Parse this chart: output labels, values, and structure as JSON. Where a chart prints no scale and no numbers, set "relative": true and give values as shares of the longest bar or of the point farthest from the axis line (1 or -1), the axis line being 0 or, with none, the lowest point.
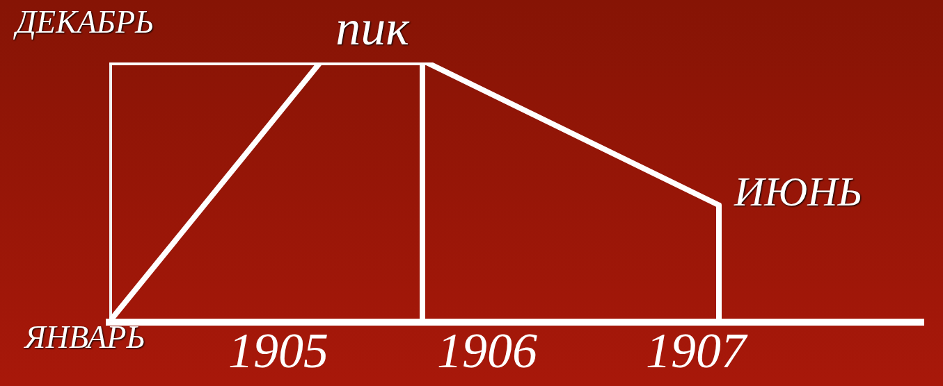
{
  "chart_data": {
    "type": "line",
    "relative": true,
    "xlim": [
      1904.19,
      1908.09
    ],
    "xticks": [
      1905,
      1906,
      1907
    ],
    "series": [
      {
        "color": "#ffffff",
        "x": [
          1904.19,
          1905.2,
          1905.71,
          1907.11,
          1907.11
        ],
        "values": [
          0,
          1,
          1,
          0.45,
          0
        ]
      },
      {
        "color": "#ffffff",
        "x": [
          1905.69,
          1905.69
        ],
        "values": [
          0,
          1
        ]
      },
      {
        "color": "#ffffff",
        "x": [
          1904.19,
          1905.2
        ],
        "values": [
          1,
          1
        ]
      },
      {
        "color": "#f2f2f2",
        "x": [
          1904.19,
          1904.19
        ],
        "values": [
          0,
          1
        ]
      }
    ],
    "annotations": [
      {
        "text": "ДЕКАБРЬ",
        "x": 1904.19,
        "y": 1
      },
      {
        "text": "ЯНВАРЬ",
        "x": 1904.19,
        "y": 0
      },
      {
        "text": "пик",
        "x": 1905.45,
        "y": 1
      },
      {
        "text": "ИЮНЬ",
        "x": 1907.11,
        "y": 0.45
      }
    ],
    "grid": false,
    "legend": false,
    "marker": "none",
    "line_style": "solid"
  }
}
